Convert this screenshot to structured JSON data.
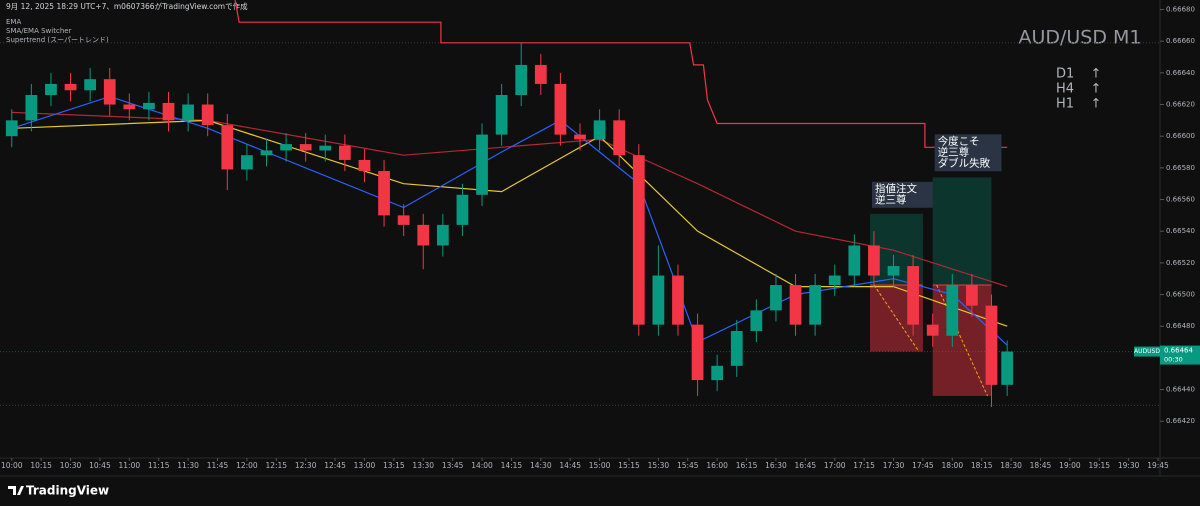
{
  "chart_data": {
    "type": "candlestick",
    "header": "9月 12, 2025 18:29 UTC+7、m0607366がTradingView.comで作成",
    "indicators": [
      "EMA",
      "SMA/EMA Switcher",
      "Supertrend (スーパートレンド)"
    ],
    "title": "AUD/USD M1",
    "trend": [
      {
        "tf": "D1",
        "arrow": "↑"
      },
      {
        "tf": "H4",
        "arrow": "↑"
      },
      {
        "tf": "H1",
        "arrow": "↑"
      }
    ],
    "brand": "TradingView",
    "up_color": "#089981",
    "down_color": "#f23645",
    "x": [
      600,
      610,
      620,
      630,
      640,
      650,
      660,
      670,
      680,
      690,
      700,
      710,
      720,
      730,
      740,
      750,
      760,
      770,
      780,
      790,
      800,
      810,
      820,
      830,
      840,
      850,
      860,
      870,
      880,
      890,
      900,
      910,
      920,
      930,
      940,
      950,
      960,
      970,
      980,
      990,
      1000,
      1010,
      1020,
      1030,
      1040,
      1050,
      1060,
      1070,
      1080,
      1090,
      1100,
      1108
    ],
    "open": [
      0.666,
      0.6661,
      0.66626,
      0.66633,
      0.66629,
      0.66636,
      0.6662,
      0.66617,
      0.66621,
      0.6661,
      0.6662,
      0.66607,
      0.66579,
      0.66588,
      0.66591,
      0.66595,
      0.66591,
      0.66594,
      0.66585,
      0.66578,
      0.6655,
      0.66544,
      0.66531,
      0.66544,
      0.66563,
      0.66601,
      0.66626,
      0.66645,
      0.66633,
      0.66601,
      0.66598,
      0.6661,
      0.66588,
      0.66481,
      0.66512,
      0.66481,
      0.66446,
      0.66455,
      0.66477,
      0.6649,
      0.66506,
      0.66481,
      0.66506,
      0.66512,
      0.66531,
      0.66512,
      0.66518,
      0.66481,
      0.66474,
      0.66506,
      0.66493,
      0.66443
    ],
    "high": [
      0.66617,
      0.66633,
      0.6664,
      0.6664,
      0.66643,
      0.66643,
      0.66627,
      0.66628,
      0.66628,
      0.66627,
      0.66627,
      0.66614,
      0.66595,
      0.66598,
      0.66602,
      0.66602,
      0.66601,
      0.66601,
      0.66592,
      0.66585,
      0.66557,
      0.66551,
      0.66551,
      0.6657,
      0.66608,
      0.66633,
      0.66659,
      0.66652,
      0.6664,
      0.66608,
      0.66617,
      0.66617,
      0.66595,
      0.66531,
      0.66519,
      0.66488,
      0.66462,
      0.66484,
      0.66497,
      0.66513,
      0.66513,
      0.66513,
      0.66519,
      0.66538,
      0.6654,
      0.66525,
      0.66525,
      0.66488,
      0.66513,
      0.66513,
      0.665,
      0.66471
    ],
    "low": [
      0.66593,
      0.66603,
      0.66619,
      0.66622,
      0.66622,
      0.66613,
      0.6661,
      0.6661,
      0.66603,
      0.66603,
      0.666,
      0.66566,
      0.66572,
      0.66581,
      0.66584,
      0.66584,
      0.66584,
      0.66578,
      0.66571,
      0.66543,
      0.66537,
      0.66516,
      0.66524,
      0.66537,
      0.66556,
      0.66594,
      0.66619,
      0.66626,
      0.66594,
      0.66591,
      0.66591,
      0.66581,
      0.66474,
      0.66474,
      0.66474,
      0.66436,
      0.66439,
      0.66448,
      0.6647,
      0.66483,
      0.66474,
      0.66474,
      0.66499,
      0.66505,
      0.66505,
      0.66505,
      0.66474,
      0.66467,
      0.66467,
      0.66486,
      0.66429,
      0.66436
    ],
    "close": [
      0.6661,
      0.66626,
      0.66633,
      0.66629,
      0.66636,
      0.6662,
      0.66617,
      0.66621,
      0.6661,
      0.6662,
      0.66607,
      0.66579,
      0.66588,
      0.66591,
      0.66595,
      0.66591,
      0.66594,
      0.66585,
      0.66578,
      0.6655,
      0.66544,
      0.66531,
      0.66544,
      0.66563,
      0.66601,
      0.66626,
      0.66645,
      0.66633,
      0.66601,
      0.66598,
      0.6661,
      0.66588,
      0.66481,
      0.66512,
      0.66481,
      0.66446,
      0.66455,
      0.66477,
      0.6649,
      0.66506,
      0.66481,
      0.66506,
      0.66512,
      0.66531,
      0.66512,
      0.66518,
      0.66481,
      0.66474,
      0.66506,
      0.66493,
      0.66443,
      0.66464
    ],
    "lines": [
      {
        "color": "#f23645",
        "x": [
          714,
          716,
          819,
          819,
          946,
          948,
          953,
          955,
          960,
          1066,
          1066,
          1108
        ],
        "values": [
          0.66686,
          0.66672,
          0.66672,
          0.66659,
          0.66659,
          0.66645,
          0.66645,
          0.66623,
          0.66608,
          0.66608,
          0.66593,
          0.66593
        ]
      },
      {
        "color": "#b22833",
        "x": [
          600,
          700,
          800,
          900,
          950,
          1000,
          1050,
          1108
        ],
        "values": [
          0.66615,
          0.6661,
          0.66588,
          0.66598,
          0.6657,
          0.6654,
          0.66528,
          0.66505
        ]
      },
      {
        "color": "#e6c829",
        "x": [
          600,
          700,
          800,
          850,
          900,
          950,
          1000,
          1050,
          1108
        ],
        "values": [
          0.66605,
          0.6661,
          0.6657,
          0.66565,
          0.666,
          0.6654,
          0.66505,
          0.66505,
          0.6648
        ]
      },
      {
        "color": "#2962ff",
        "x": [
          600,
          650,
          700,
          800,
          850,
          880,
          920,
          950,
          1000,
          1050,
          1080,
          1108
        ],
        "values": [
          0.66605,
          0.66625,
          0.66605,
          0.66555,
          0.6659,
          0.6661,
          0.6657,
          0.6647,
          0.665,
          0.6651,
          0.665,
          0.66468
        ]
      }
    ],
    "positions": [
      {
        "x": [
          1038,
          1065
        ],
        "target": 0.66551,
        "entry": 0.66506,
        "stop": 0.66464,
        "label": [
          "指値注文",
          "逆三尊"
        ]
      },
      {
        "x": [
          1070,
          1100
        ],
        "target": 0.66574,
        "entry": 0.66506,
        "stop": 0.66436,
        "label": [
          "今度こそ",
          "逆三尊",
          "ダブル失敗"
        ]
      }
    ],
    "hlines": [
      0.66659,
      0.6643
    ],
    "price_tag": {
      "symbol": "AUDUSD",
      "price": 0.66464,
      "countdown": "00:30"
    },
    "xlim": [
      594,
      1186
    ],
    "ylim": [
      0.66405,
      0.66686
    ],
    "yticks": [
      {
        "value": 0.6668,
        "label": "0.66680"
      },
      {
        "value": 0.6666,
        "label": "0.66660"
      },
      {
        "value": 0.6664,
        "label": "0.66640"
      },
      {
        "value": 0.6662,
        "label": "0.66620"
      },
      {
        "value": 0.666,
        "label": "0.66600"
      },
      {
        "value": 0.6658,
        "label": "0.66580"
      },
      {
        "value": 0.6656,
        "label": "0.66560"
      },
      {
        "value": 0.6654,
        "label": "0.66540"
      },
      {
        "value": 0.6652,
        "label": "0.66520"
      },
      {
        "value": 0.665,
        "label": "0.66500"
      },
      {
        "value": 0.6648,
        "label": "0.66480"
      },
      {
        "value": 0.6646,
        "label": "0.66460"
      },
      {
        "value": 0.6644,
        "label": "0.66440"
      },
      {
        "value": 0.6642,
        "label": "0.66420"
      }
    ],
    "xticks": [
      {
        "value": 600,
        "label": "10:00"
      },
      {
        "value": 615,
        "label": "10:15"
      },
      {
        "value": 630,
        "label": "10:30"
      },
      {
        "value": 645,
        "label": "10:45"
      },
      {
        "value": 660,
        "label": "11:00"
      },
      {
        "value": 675,
        "label": "11:15"
      },
      {
        "value": 690,
        "label": "11:30"
      },
      {
        "value": 705,
        "label": "11:45"
      },
      {
        "value": 720,
        "label": "12:00"
      },
      {
        "value": 735,
        "label": "12:15"
      },
      {
        "value": 750,
        "label": "12:30"
      },
      {
        "value": 765,
        "label": "12:45"
      },
      {
        "value": 780,
        "label": "13:00"
      },
      {
        "value": 795,
        "label": "13:15"
      },
      {
        "value": 810,
        "label": "13:30"
      },
      {
        "value": 825,
        "label": "13:45"
      },
      {
        "value": 840,
        "label": "14:00"
      },
      {
        "value": 855,
        "label": "14:15"
      },
      {
        "value": 870,
        "label": "14:30"
      },
      {
        "value": 885,
        "label": "14:45"
      },
      {
        "value": 900,
        "label": "15:00"
      },
      {
        "value": 915,
        "label": "15:15"
      },
      {
        "value": 930,
        "label": "15:30"
      },
      {
        "value": 945,
        "label": "15:45"
      },
      {
        "value": 960,
        "label": "16:00"
      },
      {
        "value": 975,
        "label": "16:15"
      },
      {
        "value": 990,
        "label": "16:30"
      },
      {
        "value": 1005,
        "label": "16:45"
      },
      {
        "value": 1020,
        "label": "17:00"
      },
      {
        "value": 1035,
        "label": "17:15"
      },
      {
        "value": 1050,
        "label": "17:30"
      },
      {
        "value": 1065,
        "label": "17:45"
      },
      {
        "value": 1080,
        "label": "18:00"
      },
      {
        "value": 1095,
        "label": "18:15"
      },
      {
        "value": 1110,
        "label": "18:30"
      },
      {
        "value": 1125,
        "label": "18:45"
      },
      {
        "value": 1140,
        "label": "19:00"
      },
      {
        "value": 1155,
        "label": "19:15"
      },
      {
        "value": 1170,
        "label": "19:30"
      },
      {
        "value": 1185,
        "label": "19:45"
      }
    ]
  }
}
